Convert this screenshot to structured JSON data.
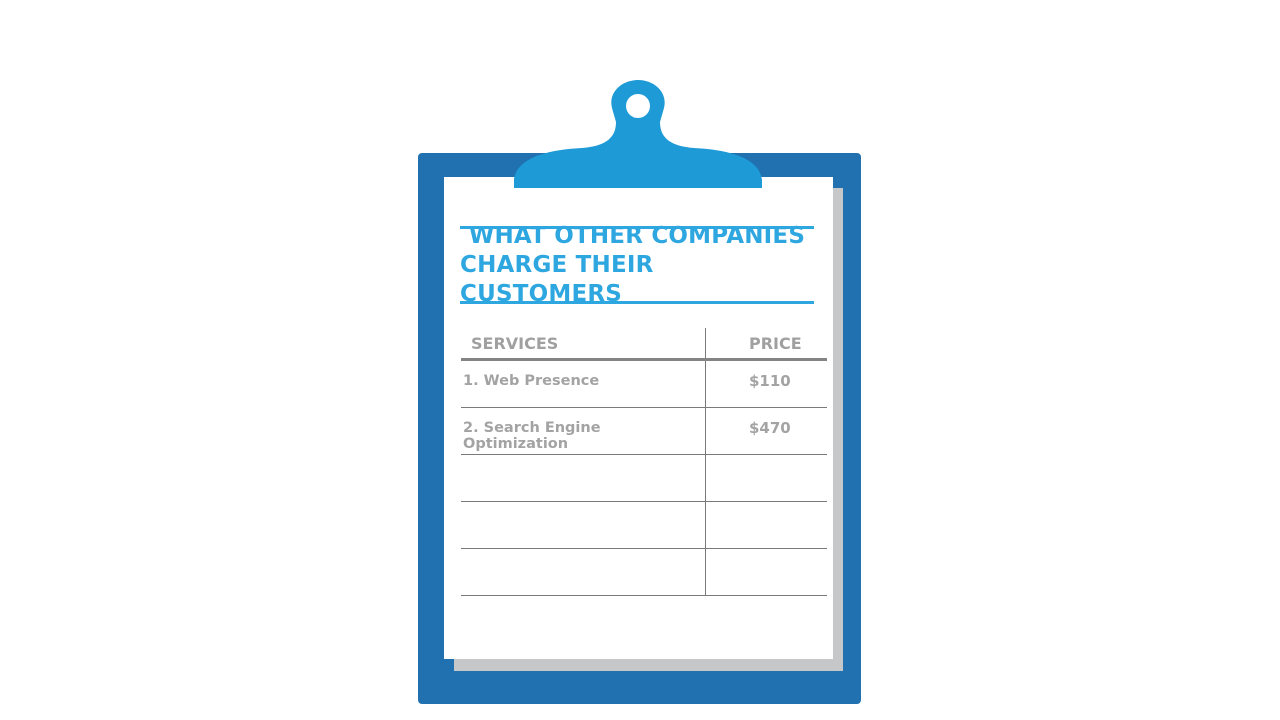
{
  "title": {
    "line1": "WHAT OTHER COMPANIES",
    "line2": "CHARGE THEIR CUSTOMERS"
  },
  "table": {
    "headers": {
      "service": "SERVICES",
      "price": "PRICE"
    },
    "rows": [
      {
        "service": "1. Web Presence",
        "price": "$110"
      },
      {
        "service": "2. Search Engine Optimization",
        "price": "$470"
      },
      {
        "service": "",
        "price": ""
      },
      {
        "service": "",
        "price": ""
      },
      {
        "service": "",
        "price": ""
      }
    ]
  },
  "colors": {
    "board": "#2171b0",
    "clip": "#1e9ad6",
    "title": "#2ea7e0",
    "shadow": "#c6c7c9",
    "text": "#a3a3a3"
  }
}
